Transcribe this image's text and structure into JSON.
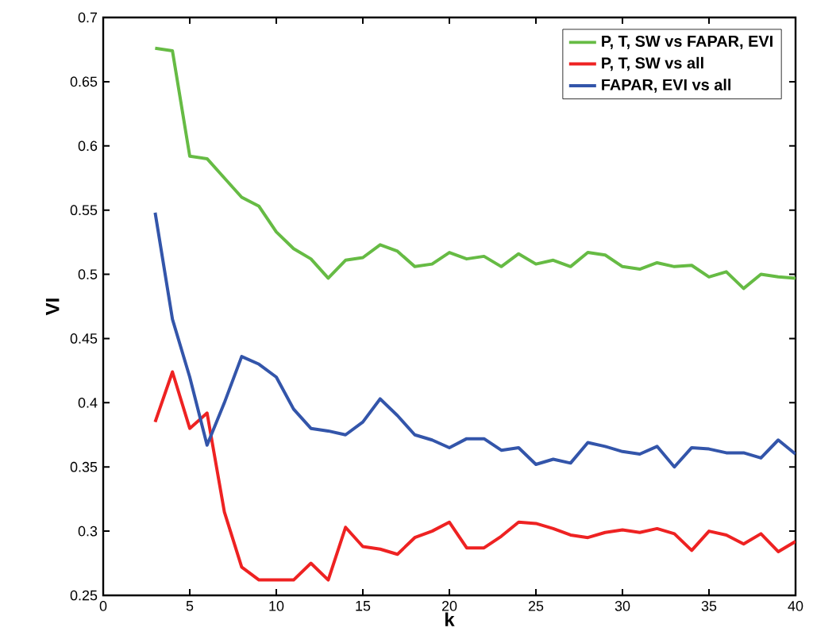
{
  "chart_data": {
    "type": "line",
    "xlabel": "k",
    "ylabel": "VI",
    "x": [
      3,
      4,
      5,
      6,
      7,
      8,
      9,
      10,
      11,
      12,
      13,
      14,
      15,
      16,
      17,
      18,
      19,
      20,
      21,
      22,
      23,
      24,
      25,
      26,
      27,
      28,
      29,
      30,
      31,
      32,
      33,
      34,
      35,
      36,
      37,
      38,
      39,
      40
    ],
    "series": [
      {
        "name": "P, T, SW vs FAPAR, EVI",
        "color": "#66bb44",
        "values": [
          0.676,
          0.674,
          0.592,
          0.59,
          0.575,
          0.56,
          0.553,
          0.533,
          0.52,
          0.512,
          0.497,
          0.511,
          0.513,
          0.523,
          0.518,
          0.506,
          0.508,
          0.517,
          0.512,
          0.514,
          0.506,
          0.516,
          0.508,
          0.511,
          0.506,
          0.517,
          0.515,
          0.506,
          0.504,
          0.509,
          0.506,
          0.507,
          0.498,
          0.502,
          0.489,
          0.5,
          0.498,
          0.497
        ]
      },
      {
        "name": "P, T, SW vs all",
        "color": "#ee2222",
        "values": [
          0.385,
          0.424,
          0.38,
          0.392,
          0.315,
          0.272,
          0.262,
          0.262,
          0.262,
          0.275,
          0.262,
          0.303,
          0.288,
          0.286,
          0.282,
          0.295,
          0.3,
          0.307,
          0.287,
          0.287,
          0.296,
          0.307,
          0.306,
          0.302,
          0.297,
          0.295,
          0.299,
          0.301,
          0.299,
          0.302,
          0.298,
          0.285,
          0.3,
          0.297,
          0.29,
          0.298,
          0.284,
          0.292
        ]
      },
      {
        "name": "FAPAR, EVI vs all",
        "color": "#3355aa",
        "values": [
          0.548,
          0.465,
          0.42,
          0.367,
          0.4,
          0.436,
          0.43,
          0.42,
          0.395,
          0.38,
          0.378,
          0.375,
          0.385,
          0.403,
          0.39,
          0.375,
          0.371,
          0.365,
          0.372,
          0.372,
          0.363,
          0.365,
          0.352,
          0.356,
          0.353,
          0.369,
          0.366,
          0.362,
          0.36,
          0.366,
          0.35,
          0.365,
          0.364,
          0.361,
          0.361,
          0.357,
          0.371,
          0.36
        ]
      }
    ],
    "xlim": [
      0,
      40
    ],
    "ylim": [
      0.25,
      0.7
    ],
    "xticks": [
      0,
      5,
      10,
      15,
      20,
      25,
      30,
      35,
      40
    ],
    "yticks": [
      0.25,
      0.3,
      0.35,
      0.4,
      0.45,
      0.5,
      0.55,
      0.6,
      0.65,
      0.7
    ],
    "legend": "top right",
    "grid": false,
    "marker": "none",
    "line_style": "solid"
  }
}
